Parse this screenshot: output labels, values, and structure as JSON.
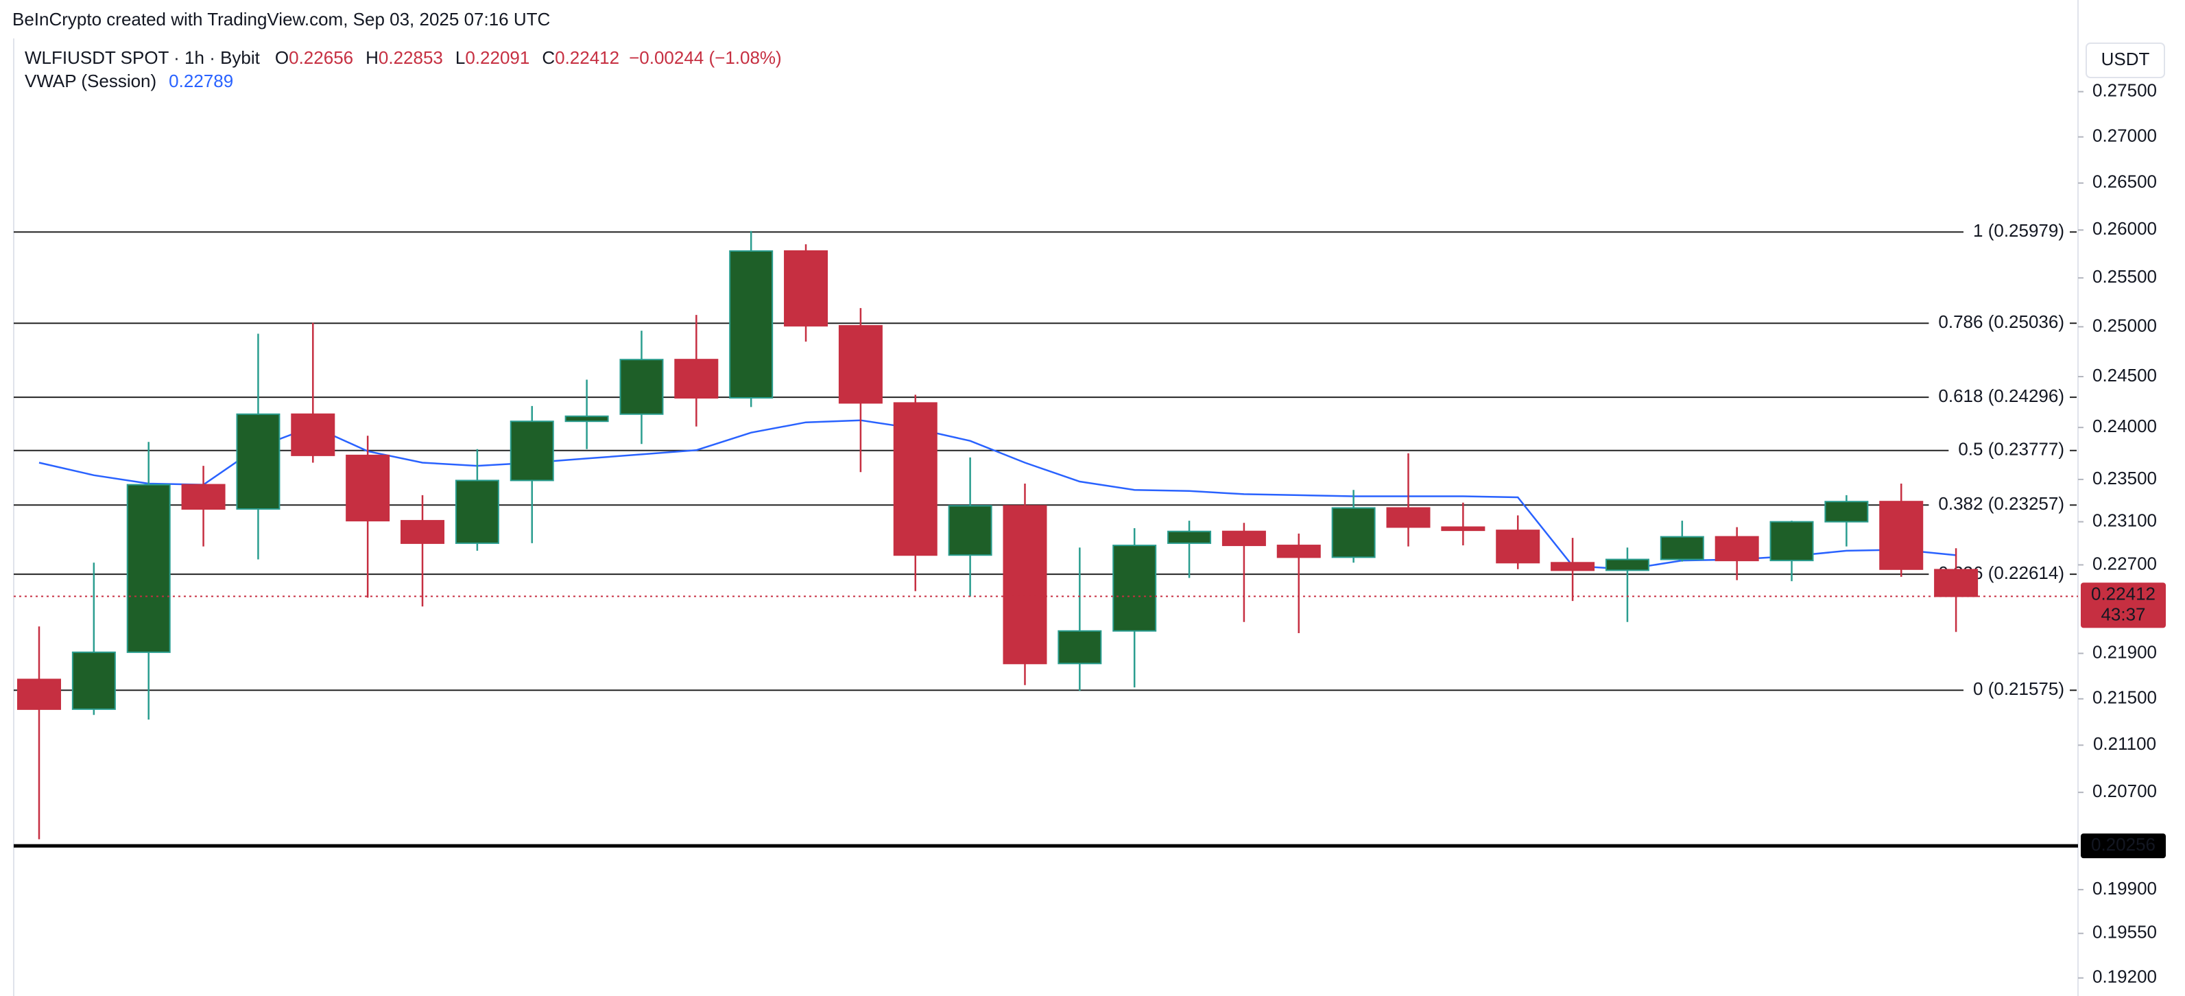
{
  "chart_data": {
    "type": "candlestick",
    "credit": "BeInCrypto created with TradingView.com, Sep 03, 2025 07:16 UTC",
    "symbol": "WLFIUSDT SPOT · 1h · Bybit",
    "ohlc_header": [
      {
        "label": "O",
        "value": 0.22656
      },
      {
        "label": "H",
        "value": 0.22853
      },
      {
        "label": "L",
        "value": 0.22091
      },
      {
        "label": "C",
        "value": 0.22412
      }
    ],
    "change": "−0.00244 (−1.08%)",
    "vwap": {
      "name": "VWAP (Session)",
      "last": 0.22789,
      "color": "#2962ff",
      "values": [
        0.2366,
        0.2354,
        0.2346,
        0.2345,
        0.2381,
        0.2401,
        0.2377,
        0.2366,
        0.2363,
        0.2366,
        0.237,
        0.2374,
        0.2378,
        0.2395,
        0.2405,
        0.2407,
        0.2399,
        0.2387,
        0.2366,
        0.2348,
        0.234,
        0.2339,
        0.2336,
        0.2335,
        0.2334,
        0.2334,
        0.2334,
        0.2333,
        0.2269,
        0.2266,
        0.2274,
        0.2275,
        0.2278,
        0.2283,
        0.2284,
        0.22789
      ]
    },
    "open": [
      0.2167,
      0.2141,
      0.2191,
      0.2345,
      0.2322,
      0.2413,
      0.2373,
      0.2311,
      0.229,
      0.2349,
      0.2406,
      0.2413,
      0.2467,
      0.2429,
      0.2578,
      0.2501,
      0.2424,
      0.2279,
      0.2325,
      0.2181,
      0.221,
      0.229,
      0.2301,
      0.2288,
      0.2277,
      0.2323,
      0.2305,
      0.2302,
      0.2272,
      0.2265,
      0.2275,
      0.2296,
      0.2274,
      0.231,
      0.2329,
      0.22656
    ],
    "high": [
      0.2214,
      0.2272,
      0.2386,
      0.2363,
      0.2493,
      0.2504,
      0.2392,
      0.2335,
      0.2379,
      0.2421,
      0.2447,
      0.2496,
      0.2512,
      0.2599,
      0.2585,
      0.2519,
      0.2432,
      0.2371,
      0.2346,
      0.2286,
      0.2304,
      0.2311,
      0.2309,
      0.2299,
      0.234,
      0.2375,
      0.2328,
      0.2316,
      0.2295,
      0.2286,
      0.2311,
      0.2305,
      0.2311,
      0.2335,
      0.2346,
      0.22853
    ],
    "low": [
      0.2031,
      0.2136,
      0.2132,
      0.2287,
      0.2275,
      0.2366,
      0.224,
      0.2232,
      0.2283,
      0.229,
      0.2379,
      0.2384,
      0.2401,
      0.242,
      0.2485,
      0.2357,
      0.2246,
      0.2241,
      0.2162,
      0.2157,
      0.216,
      0.2258,
      0.2218,
      0.2208,
      0.2272,
      0.2287,
      0.2288,
      0.2266,
      0.2237,
      0.2218,
      0.2273,
      0.2256,
      0.2255,
      0.2287,
      0.2259,
      0.22091
    ],
    "close": [
      0.2141,
      0.2191,
      0.2345,
      0.2322,
      0.2413,
      0.2373,
      0.2311,
      0.229,
      0.2349,
      0.2406,
      0.2411,
      0.2467,
      0.2429,
      0.2578,
      0.2501,
      0.2424,
      0.2279,
      0.2325,
      0.2181,
      0.221,
      0.2288,
      0.2301,
      0.2288,
      0.2277,
      0.2323,
      0.2305,
      0.2302,
      0.2272,
      0.2265,
      0.2275,
      0.2296,
      0.2274,
      0.231,
      0.2329,
      0.2266,
      0.22412
    ],
    "up_color": "#1e5f28",
    "up_wick": "#2a9d8f",
    "down_color": "#c62f41",
    "fib_levels": [
      {
        "value": 0.25979,
        "label": "1 (0.25979)"
      },
      {
        "value": 0.25036,
        "label": "0.786 (0.25036)"
      },
      {
        "value": 0.24296,
        "label": "0.618 (0.24296)"
      },
      {
        "value": 0.23777,
        "label": "0.5 (0.23777)"
      },
      {
        "value": 0.23257,
        "label": "0.382 (0.23257)"
      },
      {
        "value": 0.22614,
        "label": "0.236 (0.22614)"
      },
      {
        "value": 0.21575,
        "label": "0 (0.21575)"
      }
    ],
    "support": 0.20256,
    "countdown": "43:37",
    "currency": "USDT",
    "log_scale": true,
    "ylim": [
      0.1906,
      0.281
    ],
    "yticks": [
      {
        "value": 0.275,
        "label": "0.27500"
      },
      {
        "value": 0.27,
        "label": "0.27000"
      },
      {
        "value": 0.265,
        "label": "0.26500"
      },
      {
        "value": 0.26,
        "label": "0.26000"
      },
      {
        "value": 0.255,
        "label": "0.25500"
      },
      {
        "value": 0.25,
        "label": "0.25000"
      },
      {
        "value": 0.245,
        "label": "0.24500"
      },
      {
        "value": 0.24,
        "label": "0.24000"
      },
      {
        "value": 0.235,
        "label": "0.23500"
      },
      {
        "value": 0.231,
        "label": "0.23100"
      },
      {
        "value": 0.227,
        "label": "0.22700"
      },
      {
        "value": 0.219,
        "label": "0.21900"
      },
      {
        "value": 0.215,
        "label": "0.21500"
      },
      {
        "value": 0.211,
        "label": "0.21100"
      },
      {
        "value": 0.207,
        "label": "0.20700"
      },
      {
        "value": 0.199,
        "label": "0.19900"
      },
      {
        "value": 0.1955,
        "label": "0.19550"
      },
      {
        "value": 0.192,
        "label": "0.19200"
      }
    ]
  }
}
